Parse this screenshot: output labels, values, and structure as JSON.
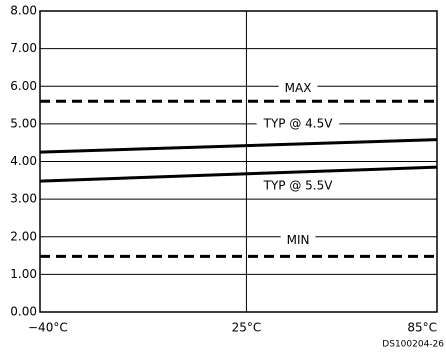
{
  "chart_data": {
    "type": "line",
    "x": [
      -40,
      85
    ],
    "series": [
      {
        "name": "MAX",
        "color": "#000000",
        "dashed": true,
        "values": [
          5.6,
          5.6
        ]
      },
      {
        "name": "TYP @ 4.5V",
        "color": "#000000",
        "dashed": false,
        "values": [
          4.25,
          4.58
        ]
      },
      {
        "name": "TYP @ 5.5V",
        "color": "#000000",
        "dashed": false,
        "values": [
          3.48,
          3.85
        ]
      },
      {
        "name": "MIN",
        "color": "#000000",
        "dashed": true,
        "values": [
          1.48,
          1.48
        ]
      }
    ],
    "xlim": [
      -40,
      85
    ],
    "xticks": [
      {
        "value": -40,
        "label": "−40°C"
      },
      {
        "value": 25,
        "label": "25°C"
      },
      {
        "value": 85,
        "label": "85°C"
      }
    ],
    "ylim": [
      0,
      8
    ],
    "yticks": [
      {
        "value": 0,
        "label": "0.00"
      },
      {
        "value": 1,
        "label": "1.00"
      },
      {
        "value": 2,
        "label": "2.00"
      },
      {
        "value": 3,
        "label": "3.00"
      },
      {
        "value": 4,
        "label": "4.00"
      },
      {
        "value": 5,
        "label": "5.00"
      },
      {
        "value": 6,
        "label": "6.00"
      },
      {
        "value": 7,
        "label": "7.00"
      },
      {
        "value": 8,
        "label": "8.00"
      }
    ],
    "grid": true,
    "note": "DS100204-26"
  }
}
